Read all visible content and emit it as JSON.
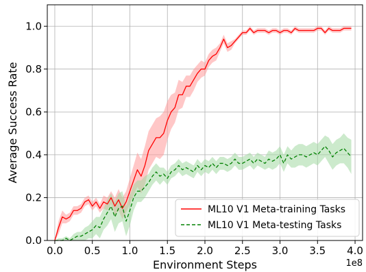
{
  "chart_data": {
    "type": "line",
    "title": "",
    "xlabel": "Environment Steps",
    "ylabel": "Average Success Rate",
    "x_offset_label": "1e8",
    "xlim": [
      -0.1,
      4.1
    ],
    "ylim": [
      0.0,
      1.1
    ],
    "xticks": [
      0.0,
      0.5,
      1.0,
      1.5,
      2.0,
      2.5,
      3.0,
      3.5,
      4.0
    ],
    "xtick_labels": [
      "0.0",
      "0.5",
      "1.0",
      "1.5",
      "2.0",
      "2.5",
      "3.0",
      "3.5",
      "4.0"
    ],
    "yticks": [
      0.0,
      0.2,
      0.4,
      0.6,
      0.8,
      1.0
    ],
    "ytick_labels": [
      "0.0",
      "0.2",
      "0.4",
      "0.6",
      "0.8",
      "1.0"
    ],
    "grid": true,
    "legend_position": "lower-right",
    "series": [
      {
        "name": "ML10 V1 Meta-training Tasks",
        "color": "#ff0000",
        "band_color": "#ff9999",
        "line_style": "solid",
        "points": [
          [
            0.0,
            0.0
          ],
          [
            0.05,
            0.06
          ],
          [
            0.1,
            0.11
          ],
          [
            0.15,
            0.1
          ],
          [
            0.2,
            0.11
          ],
          [
            0.25,
            0.14
          ],
          [
            0.3,
            0.14
          ],
          [
            0.35,
            0.15
          ],
          [
            0.4,
            0.18
          ],
          [
            0.45,
            0.19
          ],
          [
            0.5,
            0.16
          ],
          [
            0.55,
            0.18
          ],
          [
            0.6,
            0.15
          ],
          [
            0.65,
            0.18
          ],
          [
            0.7,
            0.17
          ],
          [
            0.75,
            0.2
          ],
          [
            0.8,
            0.16
          ],
          [
            0.85,
            0.19
          ],
          [
            0.9,
            0.15
          ],
          [
            0.95,
            0.18
          ],
          [
            1.0,
            0.23
          ],
          [
            1.05,
            0.28
          ],
          [
            1.1,
            0.33
          ],
          [
            1.15,
            0.3
          ],
          [
            1.2,
            0.35
          ],
          [
            1.25,
            0.42
          ],
          [
            1.3,
            0.45
          ],
          [
            1.35,
            0.48
          ],
          [
            1.4,
            0.48
          ],
          [
            1.45,
            0.5
          ],
          [
            1.5,
            0.56
          ],
          [
            1.55,
            0.6
          ],
          [
            1.6,
            0.62
          ],
          [
            1.65,
            0.68
          ],
          [
            1.7,
            0.68
          ],
          [
            1.75,
            0.72
          ],
          [
            1.8,
            0.72
          ],
          [
            1.85,
            0.75
          ],
          [
            1.9,
            0.78
          ],
          [
            1.95,
            0.8
          ],
          [
            2.0,
            0.8
          ],
          [
            2.05,
            0.84
          ],
          [
            2.1,
            0.86
          ],
          [
            2.15,
            0.87
          ],
          [
            2.2,
            0.9
          ],
          [
            2.25,
            0.94
          ],
          [
            2.3,
            0.9
          ],
          [
            2.35,
            0.91
          ],
          [
            2.4,
            0.93
          ],
          [
            2.45,
            0.95
          ],
          [
            2.5,
            0.97
          ],
          [
            2.55,
            0.97
          ],
          [
            2.6,
            0.99
          ],
          [
            2.65,
            0.97
          ],
          [
            2.7,
            0.98
          ],
          [
            2.75,
            0.98
          ],
          [
            2.8,
            0.98
          ],
          [
            2.85,
            0.97
          ],
          [
            2.9,
            0.98
          ],
          [
            2.95,
            0.98
          ],
          [
            3.0,
            0.97
          ],
          [
            3.05,
            0.98
          ],
          [
            3.1,
            0.98
          ],
          [
            3.15,
            0.97
          ],
          [
            3.2,
            0.99
          ],
          [
            3.25,
            0.98
          ],
          [
            3.3,
            0.98
          ],
          [
            3.35,
            0.98
          ],
          [
            3.4,
            0.98
          ],
          [
            3.45,
            0.98
          ],
          [
            3.5,
            0.99
          ],
          [
            3.55,
            0.99
          ],
          [
            3.6,
            0.97
          ],
          [
            3.65,
            0.99
          ],
          [
            3.7,
            0.98
          ],
          [
            3.75,
            0.98
          ],
          [
            3.8,
            0.98
          ],
          [
            3.85,
            0.99
          ],
          [
            3.9,
            0.99
          ],
          [
            3.95,
            0.99
          ]
        ],
        "band_halfwidth": [
          0.0,
          0.03,
          0.03,
          0.02,
          0.02,
          0.02,
          0.02,
          0.02,
          0.02,
          0.02,
          0.02,
          0.02,
          0.02,
          0.03,
          0.03,
          0.03,
          0.04,
          0.05,
          0.05,
          0.05,
          0.06,
          0.07,
          0.08,
          0.08,
          0.09,
          0.09,
          0.09,
          0.09,
          0.1,
          0.1,
          0.09,
          0.08,
          0.07,
          0.07,
          0.06,
          0.05,
          0.05,
          0.05,
          0.04,
          0.04,
          0.03,
          0.03,
          0.03,
          0.03,
          0.02,
          0.02,
          0.02,
          0.02,
          0.01,
          0.01,
          0.01,
          0.01,
          0.01,
          0.01,
          0.01,
          0.01,
          0.01,
          0.01,
          0.01,
          0.01,
          0.01,
          0.01,
          0.01,
          0.01,
          0.01,
          0.01,
          0.01,
          0.01,
          0.01,
          0.01,
          0.01,
          0.01,
          0.01,
          0.01,
          0.01,
          0.01,
          0.01,
          0.01,
          0.01,
          0.01
        ]
      },
      {
        "name": "ML10 V1 Meta-testing Tasks",
        "color": "#008000",
        "band_color": "#a3d9a3",
        "line_style": "dashed",
        "points": [
          [
            0.0,
            0.0
          ],
          [
            0.05,
            0.0
          ],
          [
            0.1,
            0.0
          ],
          [
            0.15,
            0.01
          ],
          [
            0.2,
            0.0
          ],
          [
            0.25,
            0.01
          ],
          [
            0.3,
            0.02
          ],
          [
            0.35,
            0.02
          ],
          [
            0.4,
            0.03
          ],
          [
            0.45,
            0.04
          ],
          [
            0.5,
            0.05
          ],
          [
            0.55,
            0.07
          ],
          [
            0.6,
            0.06
          ],
          [
            0.65,
            0.1
          ],
          [
            0.7,
            0.13
          ],
          [
            0.75,
            0.16
          ],
          [
            0.8,
            0.11
          ],
          [
            0.85,
            0.15
          ],
          [
            0.9,
            0.16
          ],
          [
            0.95,
            0.09
          ],
          [
            1.0,
            0.14
          ],
          [
            1.05,
            0.2
          ],
          [
            1.1,
            0.23
          ],
          [
            1.15,
            0.23
          ],
          [
            1.2,
            0.25
          ],
          [
            1.25,
            0.27
          ],
          [
            1.3,
            0.3
          ],
          [
            1.35,
            0.32
          ],
          [
            1.4,
            0.3
          ],
          [
            1.45,
            0.31
          ],
          [
            1.5,
            0.29
          ],
          [
            1.55,
            0.32
          ],
          [
            1.6,
            0.33
          ],
          [
            1.65,
            0.35
          ],
          [
            1.7,
            0.33
          ],
          [
            1.75,
            0.34
          ],
          [
            1.8,
            0.33
          ],
          [
            1.85,
            0.32
          ],
          [
            1.9,
            0.35
          ],
          [
            1.95,
            0.33
          ],
          [
            2.0,
            0.35
          ],
          [
            2.05,
            0.34
          ],
          [
            2.1,
            0.36
          ],
          [
            2.15,
            0.34
          ],
          [
            2.2,
            0.36
          ],
          [
            2.25,
            0.36
          ],
          [
            2.3,
            0.35
          ],
          [
            2.35,
            0.36
          ],
          [
            2.4,
            0.38
          ],
          [
            2.45,
            0.36
          ],
          [
            2.5,
            0.36
          ],
          [
            2.55,
            0.37
          ],
          [
            2.6,
            0.38
          ],
          [
            2.65,
            0.36
          ],
          [
            2.7,
            0.38
          ],
          [
            2.75,
            0.37
          ],
          [
            2.8,
            0.36
          ],
          [
            2.85,
            0.38
          ],
          [
            2.9,
            0.37
          ],
          [
            2.95,
            0.38
          ],
          [
            3.0,
            0.4
          ],
          [
            3.05,
            0.36
          ],
          [
            3.1,
            0.4
          ],
          [
            3.15,
            0.38
          ],
          [
            3.2,
            0.39
          ],
          [
            3.25,
            0.4
          ],
          [
            3.3,
            0.4
          ],
          [
            3.35,
            0.39
          ],
          [
            3.4,
            0.4
          ],
          [
            3.45,
            0.41
          ],
          [
            3.5,
            0.4
          ],
          [
            3.55,
            0.42
          ],
          [
            3.6,
            0.44
          ],
          [
            3.65,
            0.42
          ],
          [
            3.7,
            0.39
          ],
          [
            3.75,
            0.41
          ],
          [
            3.8,
            0.42
          ],
          [
            3.85,
            0.43
          ],
          [
            3.9,
            0.41
          ],
          [
            3.95,
            0.39
          ]
        ],
        "band_halfwidth": [
          0.0,
          0.01,
          0.01,
          0.01,
          0.01,
          0.02,
          0.02,
          0.02,
          0.03,
          0.03,
          0.04,
          0.04,
          0.05,
          0.05,
          0.06,
          0.06,
          0.07,
          0.07,
          0.07,
          0.07,
          0.07,
          0.06,
          0.05,
          0.05,
          0.05,
          0.04,
          0.04,
          0.04,
          0.04,
          0.03,
          0.03,
          0.03,
          0.03,
          0.03,
          0.03,
          0.03,
          0.03,
          0.03,
          0.03,
          0.03,
          0.03,
          0.03,
          0.03,
          0.03,
          0.03,
          0.03,
          0.03,
          0.03,
          0.03,
          0.03,
          0.03,
          0.03,
          0.03,
          0.03,
          0.03,
          0.03,
          0.03,
          0.04,
          0.04,
          0.04,
          0.04,
          0.04,
          0.04,
          0.04,
          0.05,
          0.05,
          0.05,
          0.05,
          0.05,
          0.05,
          0.05,
          0.05,
          0.05,
          0.06,
          0.06,
          0.06,
          0.06,
          0.07,
          0.07,
          0.08
        ]
      }
    ]
  }
}
